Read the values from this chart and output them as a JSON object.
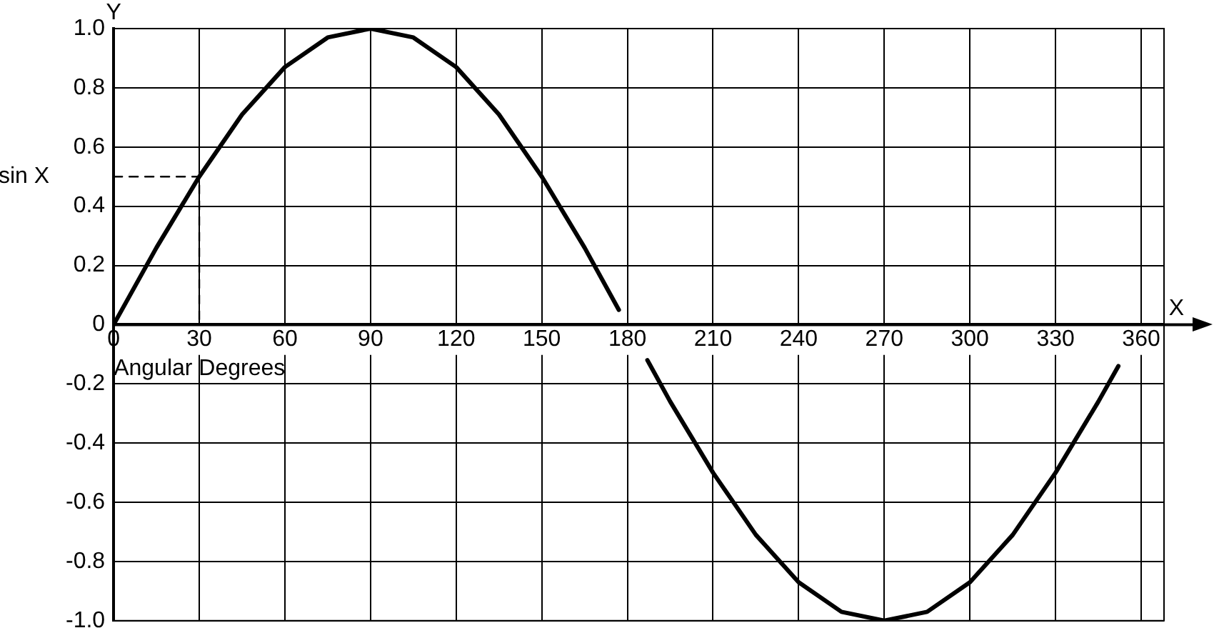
{
  "chart_data": {
    "type": "line",
    "xlabel": "Angular Degrees",
    "ylabel": "Y",
    "annotations": [
      "X",
      {
        "text": "sin X",
        "x": 0,
        "y": 0.5
      }
    ],
    "xlim": [
      0,
      368
    ],
    "xticks": [
      0,
      30,
      60,
      90,
      120,
      150,
      180,
      210,
      240,
      270,
      300,
      330,
      360
    ],
    "ylim": [
      -1,
      1
    ],
    "yticks": [
      {
        "value": -1,
        "label": "-1.0"
      },
      -0.8,
      -0.6,
      -0.4,
      -0.2,
      0,
      0.2,
      0.4,
      0.6,
      0.8,
      {
        "value": 1,
        "label": "1.0"
      }
    ],
    "grid": true,
    "legend": false,
    "marker": "none",
    "series": [
      {
        "color": "#000000",
        "line_style": "solid",
        "x": [
          0,
          15,
          30,
          45,
          60,
          75,
          90,
          105,
          120,
          135,
          150,
          165,
          177,
          180,
          187,
          195,
          210,
          225,
          240,
          255,
          270,
          285,
          300,
          315,
          330,
          345,
          352
        ],
        "values": [
          0,
          0.26,
          0.5,
          0.71,
          0.87,
          0.97,
          1,
          0.97,
          0.87,
          0.71,
          0.5,
          0.26,
          0.05,
          null,
          -0.12,
          -0.26,
          -0.5,
          -0.71,
          -0.87,
          -0.97,
          -1,
          -0.97,
          -0.87,
          -0.71,
          -0.5,
          -0.26,
          -0.14
        ]
      },
      {
        "color": "#000000",
        "line_style": "dashed",
        "x": [
          0,
          30,
          30
        ],
        "values": [
          0.5,
          0.5,
          0
        ]
      }
    ]
  }
}
